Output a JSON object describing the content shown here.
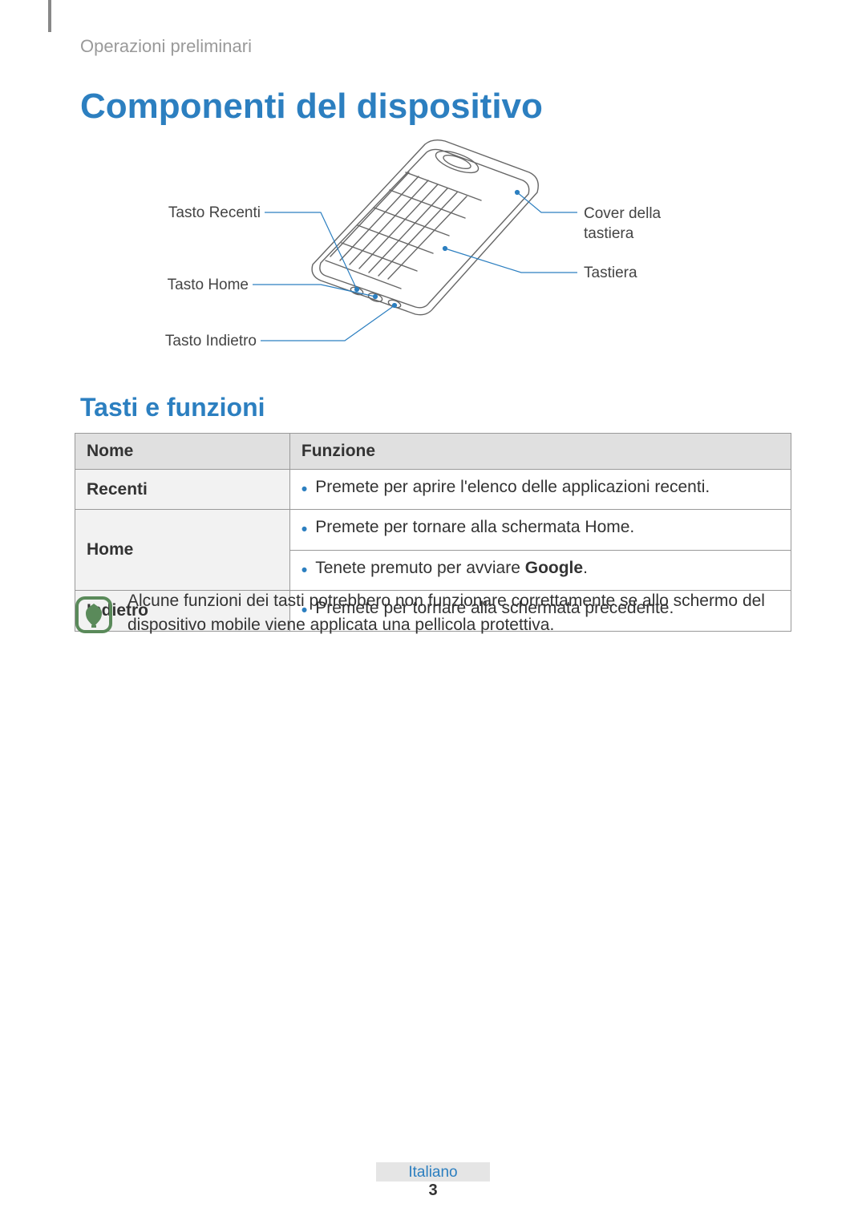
{
  "breadcrumb": "Operazioni preliminari",
  "main_title": "Componenti del dispositivo",
  "diagram": {
    "labels": {
      "recenti": "Tasto Recenti",
      "home": "Tasto Home",
      "indietro": "Tasto Indietro",
      "cover": "Cover della tastiera",
      "tastiera": "Tastiera"
    },
    "stroke_color": "#666666",
    "leader_color": "#2c7fc0",
    "leader_width": 1.2
  },
  "subtitle": "Tasti e funzioni",
  "table": {
    "header": {
      "name": "Nome",
      "func": "Funzione"
    },
    "rows": [
      {
        "name": "Recenti",
        "funcs": [
          "Premete per aprire l'elenco delle applicazioni recenti."
        ]
      },
      {
        "name": "Home",
        "funcs": [
          "Premete per tornare alla schermata Home.",
          "Tenete premuto per avviare <b>Google</b>."
        ]
      },
      {
        "name": "Indietro",
        "funcs": [
          "Premete per tornare alla schermata precedente."
        ]
      }
    ],
    "header_bg": "#e0e0e0",
    "name_bg": "#f2f2f2",
    "border_color": "#999999",
    "bullet_color": "#2c7fc0"
  },
  "note": {
    "text": "Alcune funzioni dei tasti potrebbero non funzionare correttamente se allo schermo del dispositivo mobile viene applicata una pellicola protettiva.",
    "icon_stroke": "#5a8a5a",
    "icon_fill": "#5a8a5a"
  },
  "footer": {
    "lang": "Italiano",
    "page": "3",
    "lang_color": "#2c7fc0",
    "lang_bg": "#e5e5e5"
  }
}
